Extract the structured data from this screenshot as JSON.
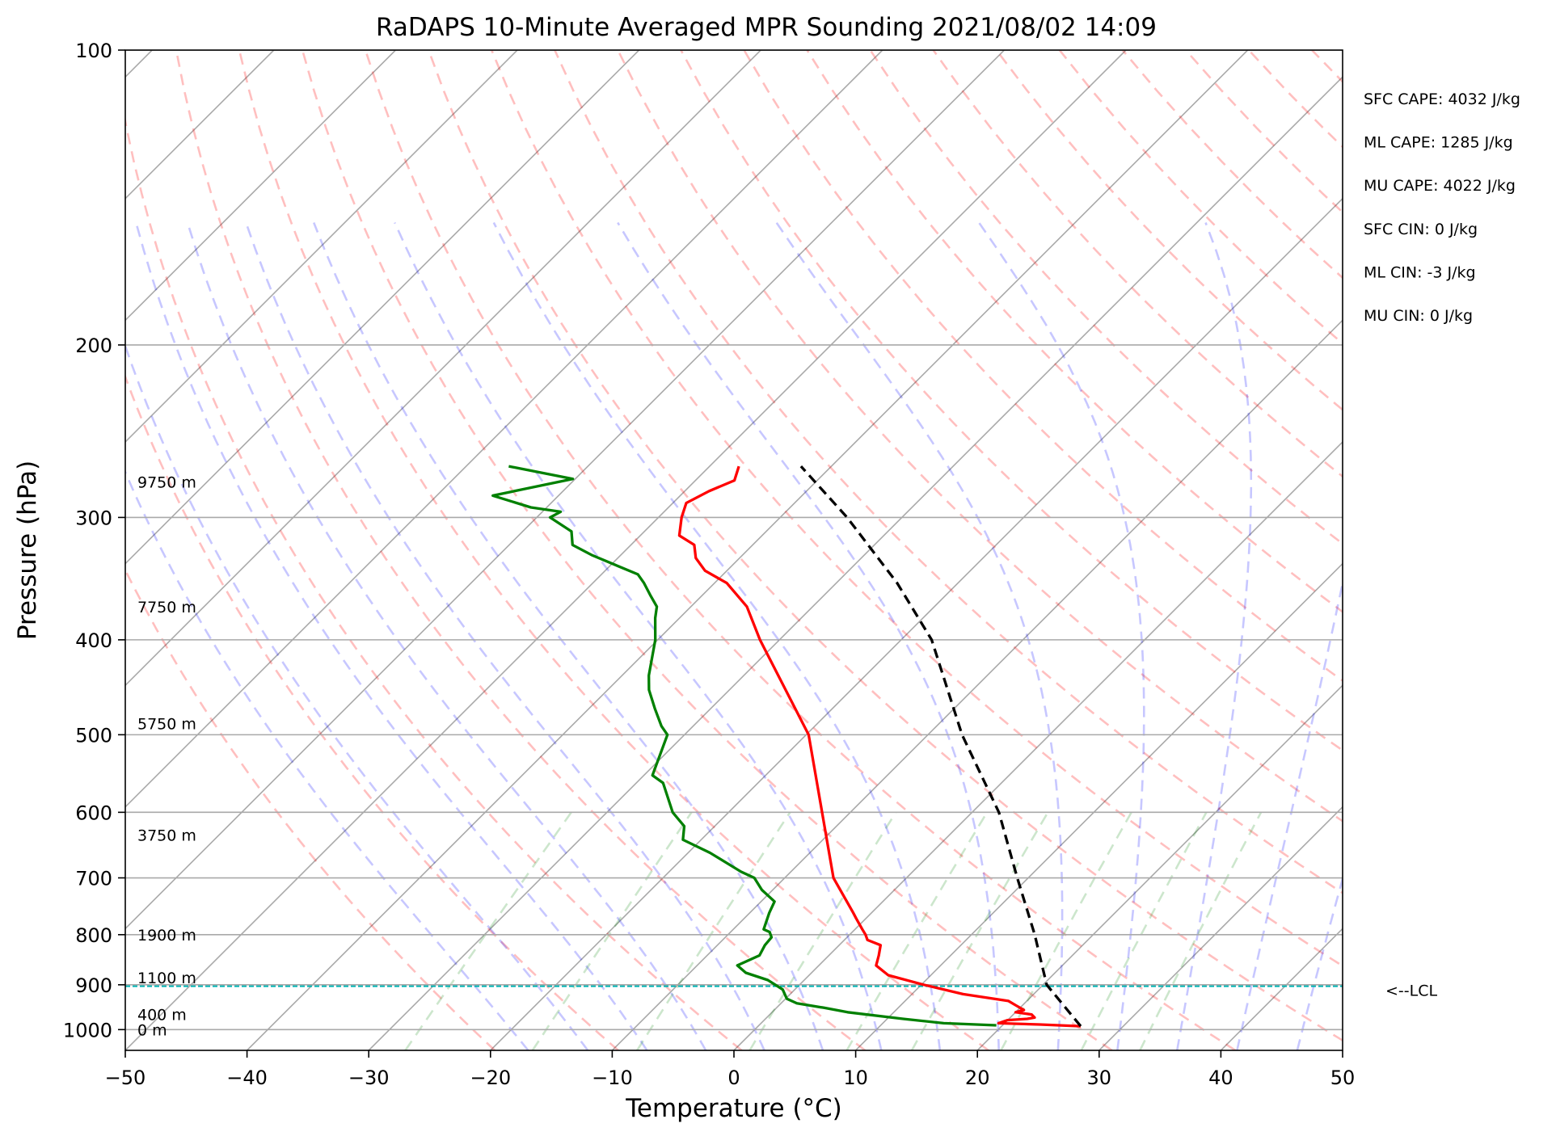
{
  "chart_data": {
    "type": "skew-t",
    "title": "RaDAPS 10-Minute Averaged MPR Sounding 2021/08/02 14:09",
    "xlabel": "Temperature (°C)",
    "ylabel": "Pressure (hPa)",
    "xlim": [
      -50,
      50
    ],
    "ylim": [
      1050,
      100
    ],
    "y_scale": "log",
    "skew_degrees": 45,
    "grid": true,
    "x_ticks": [
      -50,
      -40,
      -30,
      -20,
      -10,
      0,
      10,
      20,
      30,
      40,
      50
    ],
    "x_tick_labels": [
      "−50",
      "−40",
      "−30",
      "−20",
      "−10",
      "0",
      "10",
      "20",
      "30",
      "40",
      "50"
    ],
    "y_ticks": [
      100,
      200,
      300,
      400,
      500,
      600,
      700,
      800,
      900,
      1000
    ],
    "y_tick_labels": [
      "100",
      "200",
      "300",
      "400",
      "500",
      "600",
      "700",
      "800",
      "900",
      "1000"
    ],
    "height_labels": [
      {
        "pressure": 1000,
        "text": "0 m"
      },
      {
        "pressure": 965,
        "text": "400 m"
      },
      {
        "pressure": 885,
        "text": "1100 m"
      },
      {
        "pressure": 800,
        "text": "1900 m"
      },
      {
        "pressure": 633,
        "text": "3750 m"
      },
      {
        "pressure": 487,
        "text": "5750 m"
      },
      {
        "pressure": 370,
        "text": "7750 m"
      },
      {
        "pressure": 276,
        "text": "9750 m"
      }
    ],
    "stats": [
      "SFC CAPE: 4032 J/kg",
      "ML CAPE: 1285 J/kg",
      "MU CAPE: 4022 J/kg",
      "SFC CIN: 0 J/kg",
      "ML CIN: -3 J/kg",
      "MU CIN: 0 J/kg"
    ],
    "lcl": {
      "pressure": 903,
      "label": "<--LCL"
    },
    "series": [
      {
        "role": "temperature",
        "color": "#ff0000",
        "pressure": [
          992,
          988,
          985,
          978,
          975,
          972,
          965,
          960,
          955,
          945,
          935,
          920,
          900,
          880,
          860,
          840,
          820,
          810,
          800,
          790,
          770,
          760,
          700,
          500,
          400,
          370,
          350,
          340,
          330,
          320,
          313,
          300,
          290,
          282,
          275,
          266
        ],
        "values": [
          26.5,
          23,
          19.5,
          20,
          21.5,
          22,
          21.5,
          20,
          20.5,
          19.5,
          18.5,
          14.2,
          10.2,
          6.5,
          4.7,
          4.1,
          3.4,
          1.9,
          1.3,
          0.6,
          -0.8,
          -1.5,
          -6.0,
          -19.8,
          -31.6,
          -35.4,
          -39.0,
          -41.8,
          -43.6,
          -44.8,
          -46.8,
          -48.1,
          -48.9,
          -48.0,
          -46.8,
          -47.6
        ]
      },
      {
        "role": "dewpoint",
        "color": "#008000",
        "pressure": [
          990,
          985,
          975,
          960,
          950,
          940,
          930,
          910,
          890,
          875,
          860,
          840,
          820,
          805,
          795,
          790,
          760,
          740,
          720,
          700,
          690,
          660,
          640,
          620,
          600,
          560,
          550,
          500,
          490,
          470,
          450,
          435,
          400,
          380,
          370,
          360,
          350,
          343,
          328,
          320,
          310,
          300,
          296,
          293,
          285,
          274,
          266
        ],
        "values": [
          19.5,
          15,
          11.3,
          6.2,
          3.9,
          1.3,
          0.1,
          -1.0,
          -3.0,
          -5.4,
          -6.7,
          -5.7,
          -6.1,
          -6.2,
          -6.8,
          -7.5,
          -8.4,
          -8.9,
          -10.9,
          -12.5,
          -14.1,
          -18.2,
          -21.5,
          -22.5,
          -24.6,
          -27.8,
          -29.3,
          -31.4,
          -32.6,
          -34.6,
          -36.6,
          -37.8,
          -40.2,
          -42.0,
          -42.8,
          -44.3,
          -45.8,
          -47.0,
          -52.3,
          -54.8,
          -56.0,
          -58.9,
          -58.5,
          -61.3,
          -65.4,
          -60.2,
          -66.5
        ]
      },
      {
        "role": "parcel",
        "color": "#000000",
        "pressure": [
          992,
          900,
          800,
          700,
          600,
          500,
          400,
          350,
          300,
          266
        ],
        "values": [
          26.5,
          20.3,
          15.2,
          9.1,
          2.2,
          -7.2,
          -17.5,
          -25.0,
          -34.5,
          -42.5
        ]
      }
    ]
  }
}
